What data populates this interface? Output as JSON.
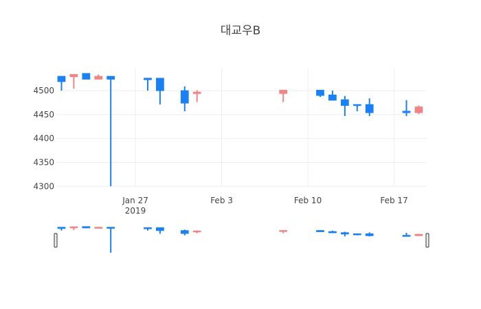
{
  "chart_data": {
    "type": "candlestick",
    "title": "대교우B",
    "x": [
      "2019-01-21",
      "2019-01-22",
      "2019-01-23",
      "2019-01-24",
      "2019-01-25",
      "2019-01-28",
      "2019-01-29",
      "2019-01-31",
      "2019-02-01",
      "2019-02-08",
      "2019-02-11",
      "2019-02-12",
      "2019-02-13",
      "2019-02-14",
      "2019-02-15",
      "2019-02-18",
      "2019-02-19"
    ],
    "open": [
      4530,
      4529,
      4536,
      4524,
      4530,
      4526,
      4526,
      4500,
      4494,
      4494,
      4501,
      4491,
      4481,
      4471,
      4471,
      4457,
      4454
    ],
    "high": [
      4530,
      4534,
      4536,
      4534,
      4530,
      4526,
      4526,
      4509,
      4501,
      4501,
      4501,
      4500,
      4489,
      4471,
      4484,
      4480,
      4469
    ],
    "low": [
      4500,
      4504,
      4524,
      4524,
      4300,
      4500,
      4471,
      4457,
      4476,
      4476,
      4487,
      4480,
      4447,
      4457,
      4447,
      4447,
      4451
    ],
    "close": [
      4519,
      4534,
      4524,
      4530,
      4524,
      4523,
      4500,
      4474,
      4497,
      4501,
      4490,
      4480,
      4469,
      4469,
      4454,
      4454,
      4466
    ],
    "increasing_color": "#f08585",
    "decreasing_color": "#1a80f5",
    "xlim": [
      "2019-01-20T15:20",
      "2019-02-19T14:10"
    ],
    "xticks": [
      {
        "value": "2019-01-27",
        "label": "Jan 27\n2019"
      },
      {
        "value": "2019-02-03",
        "label": "Feb 3"
      },
      {
        "value": "2019-02-10",
        "label": "Feb 10"
      },
      {
        "value": "2019-02-17",
        "label": "Feb 17"
      }
    ],
    "ylim": [
      4299,
      4546
    ],
    "yticks": [
      4300,
      4350,
      4400,
      4450,
      4500
    ],
    "grid": true,
    "rangeslider": true
  }
}
